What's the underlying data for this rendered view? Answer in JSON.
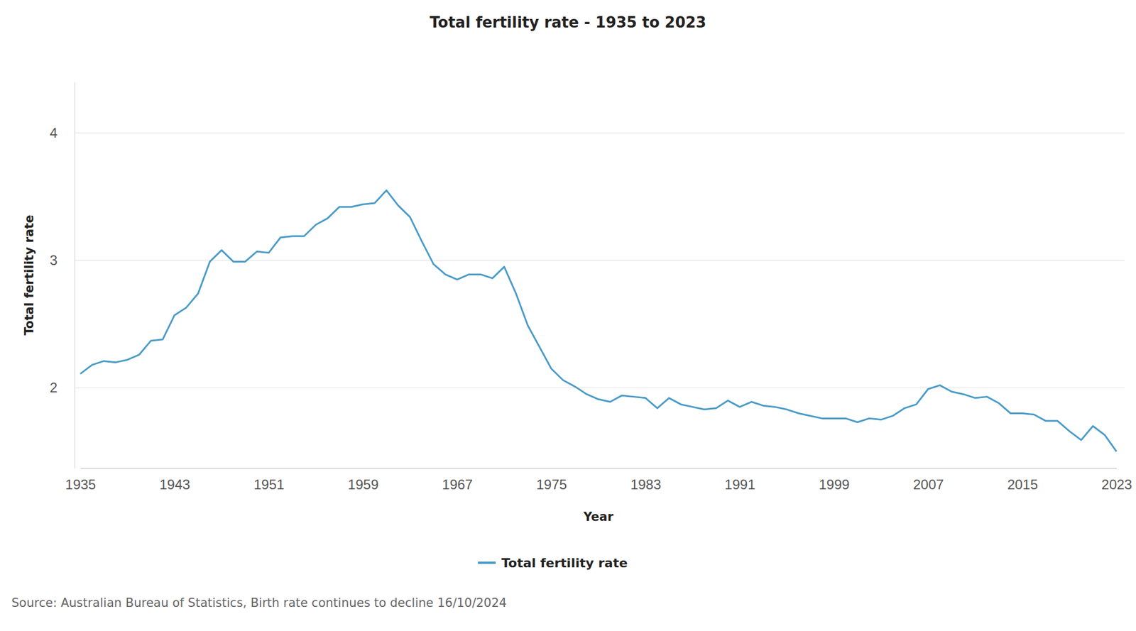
{
  "chart_data": {
    "type": "line",
    "title": "Total fertility rate - 1935 to 2023",
    "x_label": "Year",
    "y_label": "Total fertility rate",
    "source": "Source: Australian Bureau of Statistics, Birth rate continues to decline 16/10/2024",
    "x": [
      1935,
      1936,
      1937,
      1938,
      1939,
      1940,
      1941,
      1942,
      1943,
      1944,
      1945,
      1946,
      1947,
      1948,
      1949,
      1950,
      1951,
      1952,
      1953,
      1954,
      1955,
      1956,
      1957,
      1958,
      1959,
      1960,
      1961,
      1962,
      1963,
      1964,
      1965,
      1966,
      1967,
      1968,
      1969,
      1970,
      1971,
      1972,
      1973,
      1974,
      1975,
      1976,
      1977,
      1978,
      1979,
      1980,
      1981,
      1982,
      1983,
      1984,
      1985,
      1986,
      1987,
      1988,
      1989,
      1990,
      1991,
      1992,
      1993,
      1994,
      1995,
      1996,
      1997,
      1998,
      1999,
      2000,
      2001,
      2002,
      2003,
      2004,
      2005,
      2006,
      2007,
      2008,
      2009,
      2010,
      2011,
      2012,
      2013,
      2014,
      2015,
      2016,
      2017,
      2018,
      2019,
      2020,
      2021,
      2022,
      2023
    ],
    "series": [
      {
        "name": "Total fertility rate",
        "color": "#4a9bc7",
        "values": [
          2.11,
          2.18,
          2.21,
          2.2,
          2.22,
          2.26,
          2.37,
          2.38,
          2.57,
          2.63,
          2.74,
          2.99,
          3.08,
          2.99,
          2.99,
          3.07,
          3.06,
          3.18,
          3.19,
          3.19,
          3.28,
          3.33,
          3.42,
          3.42,
          3.44,
          3.45,
          3.55,
          3.43,
          3.34,
          3.15,
          2.97,
          2.89,
          2.85,
          2.89,
          2.89,
          2.86,
          2.95,
          2.74,
          2.49,
          2.32,
          2.15,
          2.06,
          2.01,
          1.95,
          1.91,
          1.89,
          1.94,
          1.93,
          1.92,
          1.84,
          1.92,
          1.87,
          1.85,
          1.83,
          1.84,
          1.9,
          1.85,
          1.89,
          1.86,
          1.85,
          1.83,
          1.8,
          1.78,
          1.76,
          1.76,
          1.76,
          1.73,
          1.76,
          1.75,
          1.78,
          1.84,
          1.87,
          1.99,
          2.02,
          1.97,
          1.95,
          1.92,
          1.93,
          1.88,
          1.8,
          1.8,
          1.79,
          1.74,
          1.74,
          1.66,
          1.59,
          1.7,
          1.63,
          1.5
        ]
      }
    ],
    "xlim": [
      1935,
      2023
    ],
    "xticks": [
      1935,
      1943,
      1951,
      1959,
      1967,
      1975,
      1983,
      1991,
      1999,
      2007,
      2015,
      2023
    ],
    "ylim": [
      1.37,
      4.4
    ],
    "yticks": [
      2,
      3,
      4
    ],
    "grid": true,
    "legend": "bottom"
  }
}
